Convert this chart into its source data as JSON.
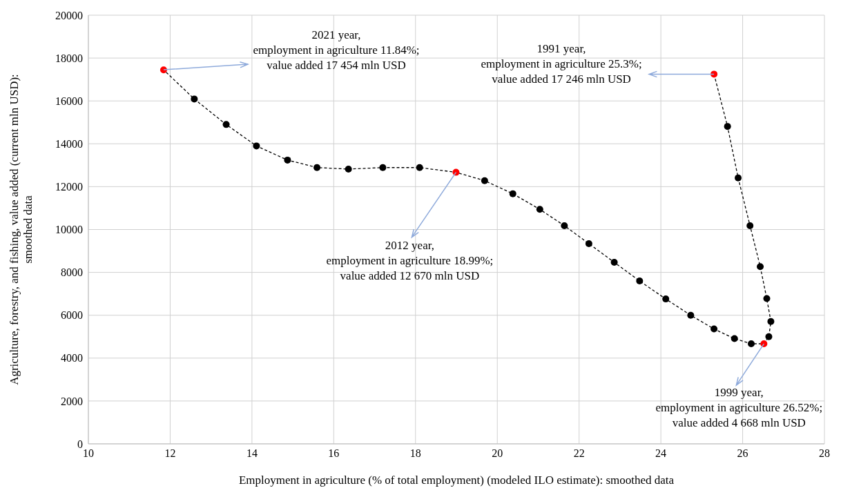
{
  "chart_data": {
    "type": "line",
    "xlabel": "Employment in agriculture (% of total employment) (modeled ILO estimate): smoothed data",
    "ylabel": "Agriculture, forestry, and fishing, value added (current mln USD): smoothed data",
    "xlim": [
      10,
      28
    ],
    "xticks": [
      10,
      12,
      14,
      16,
      18,
      20,
      22,
      24,
      26,
      28
    ],
    "ylim": [
      0,
      20000
    ],
    "yticks": [
      0,
      2000,
      4000,
      6000,
      8000,
      10000,
      12000,
      14000,
      16000,
      18000,
      20000
    ],
    "grid": true,
    "marker": "circle",
    "line_style": "dashed",
    "series": [
      {
        "color": "#000000",
        "x": [
          25.3,
          25.63,
          25.89,
          26.18,
          26.43,
          26.59,
          26.69,
          26.64,
          26.52,
          26.21,
          25.8,
          25.3,
          24.73,
          24.12,
          23.48,
          22.86,
          22.24,
          21.64,
          21.04,
          20.38,
          19.69,
          18.99,
          18.1,
          17.2,
          16.36,
          15.59,
          14.87,
          14.11,
          13.37,
          12.59,
          11.84
        ],
        "values": [
          17250,
          14810,
          12410,
          10180,
          8270,
          6780,
          5710,
          5000,
          4670,
          4670,
          4910,
          5360,
          6000,
          6760,
          7600,
          8470,
          9340,
          10180,
          10940,
          11670,
          12280,
          12670,
          12890,
          12890,
          12820,
          12890,
          13240,
          13900,
          14900,
          16090,
          17450
        ],
        "colors": [
          "#ff0000",
          "#000000",
          "#000000",
          "#000000",
          "#000000",
          "#000000",
          "#000000",
          "#000000",
          "#ff0000",
          "#000000",
          "#000000",
          "#000000",
          "#000000",
          "#000000",
          "#000000",
          "#000000",
          "#000000",
          "#000000",
          "#000000",
          "#000000",
          "#000000",
          "#ff0000",
          "#000000",
          "#000000",
          "#000000",
          "#000000",
          "#000000",
          "#000000",
          "#000000",
          "#000000",
          "#ff0000"
        ]
      }
    ],
    "annotations": [
      {
        "text": "2021 year,\nemployment in agriculture 11.84%;\nvalue added 17 454 mln USD",
        "x": 11.84,
        "y": 17454
      },
      {
        "text": "1991 year,\nemployment in agriculture 25.3%;\nvalue added 17 246 mln USD",
        "x": 25.3,
        "y": 17246
      },
      {
        "text": "2012 year,\nemployment in agriculture 18.99%;\nvalue added 12 670 mln USD",
        "x": 18.99,
        "y": 12670
      },
      {
        "text": "1999 year,\nemployment in agriculture 26.52%;\nvalue added 4 668 mln USD",
        "x": 26.52,
        "y": 4668
      }
    ]
  }
}
